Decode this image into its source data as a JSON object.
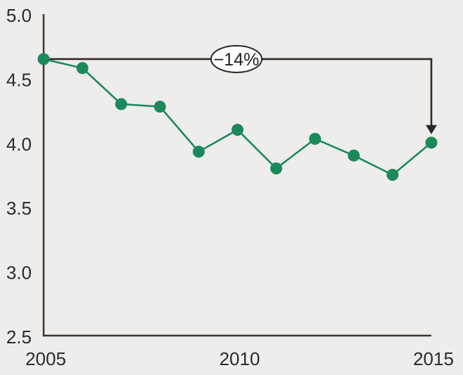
{
  "figure": {
    "background_color": "#eeedec",
    "text_color": "#2b2b2b",
    "axis_color": "#3a3632",
    "annotation_color": "#2d2926",
    "series_color": "#1a8a5a",
    "bubble_fill": "#fdfdfd",
    "annotation_text_color": "#1f1f1f"
  },
  "chart_data": {
    "type": "line",
    "title": "",
    "xlabel": "",
    "ylabel": "",
    "x": [
      2005,
      2006,
      2007,
      2008,
      2009,
      2010,
      2011,
      2012,
      2013,
      2014,
      2015
    ],
    "series": [
      {
        "name": "value",
        "values": [
          4.65,
          4.58,
          4.3,
          4.28,
          3.93,
          4.1,
          3.8,
          4.03,
          3.9,
          3.75,
          4.0
        ]
      }
    ],
    "xlim": [
      2005,
      2015
    ],
    "ylim": [
      2.5,
      5.0
    ],
    "x_ticks": [
      2005,
      2010,
      2015
    ],
    "x_tick_labels": [
      "2005",
      "2010",
      "2015"
    ],
    "y_ticks": [
      2.5,
      3.0,
      3.5,
      4.0,
      4.5,
      5.0
    ],
    "y_tick_labels": [
      "2.5",
      "3.0",
      "3.5",
      "4.0",
      "4.5",
      "5.0"
    ],
    "grid": false,
    "legend": false,
    "annotation": {
      "label": "−14%",
      "from_x": 2005,
      "from_value": 4.65,
      "to_x": 2015,
      "to_value": 4.0
    }
  }
}
